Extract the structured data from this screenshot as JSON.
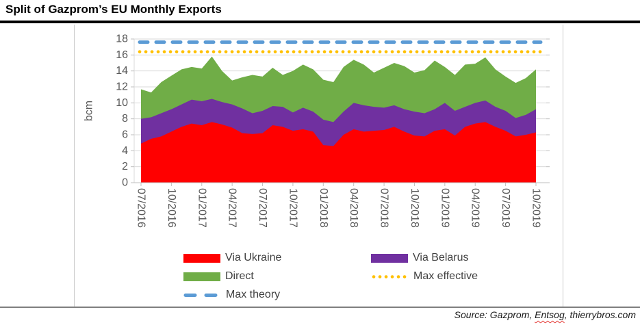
{
  "title": "Split of Gazprom’s EU Monthly Exports",
  "source": {
    "prefix": "Source: Gazprom, ",
    "spellchecked_word": "Entsog",
    "suffix": ", thierrybros.com"
  },
  "colors": {
    "via_ukraine": "#FF0000",
    "via_belarus": "#7030A0",
    "direct": "#70AD47",
    "max_effective": "#FFC000",
    "max_theory": "#5B9BD5",
    "gridline": "#D9D9D9",
    "axis": "#BFBFBF",
    "tick_text": "#595959",
    "legend_text": "#404040",
    "title_rule": "#000000",
    "bottom_rule": "#7F7F7F"
  },
  "chart_data": {
    "type": "area",
    "stacked": true,
    "title": "Split of Gazprom’s EU Monthly Exports",
    "xlabel": "",
    "ylabel": "bcm",
    "ylim": [
      0,
      18
    ],
    "ytick_step": 2,
    "ytick_labels": [
      "0",
      "2",
      "4",
      "6",
      "8",
      "10",
      "12",
      "14",
      "16",
      "18"
    ],
    "grid": true,
    "legend_position": "bottom",
    "xtick_every": 3,
    "xtick_labels": [
      "07/2016",
      "10/2016",
      "01/2017",
      "04/2017",
      "07/2017",
      "10/2017",
      "01/2018",
      "04/2018",
      "07/2018",
      "10/2018",
      "01/2019",
      "04/2019",
      "07/2019",
      "10/2019"
    ],
    "months": [
      "07/2016",
      "08/2016",
      "09/2016",
      "10/2016",
      "11/2016",
      "12/2016",
      "01/2017",
      "02/2017",
      "03/2017",
      "04/2017",
      "05/2017",
      "06/2017",
      "07/2017",
      "08/2017",
      "09/2017",
      "10/2017",
      "11/2017",
      "12/2017",
      "01/2018",
      "02/2018",
      "03/2018",
      "04/2018",
      "05/2018",
      "06/2018",
      "07/2018",
      "08/2018",
      "09/2018",
      "10/2018",
      "11/2018",
      "12/2018",
      "01/2019",
      "02/2019",
      "03/2019",
      "04/2019",
      "05/2019",
      "06/2019",
      "07/2019",
      "08/2019",
      "09/2019",
      "10/2019"
    ],
    "series": [
      {
        "name": "Via Ukraine",
        "color": "#FF0000",
        "values": [
          4.9,
          5.5,
          5.8,
          6.4,
          7.0,
          7.4,
          7.2,
          7.6,
          7.3,
          6.9,
          6.2,
          6.1,
          6.2,
          7.2,
          7.0,
          6.5,
          6.7,
          6.4,
          4.7,
          4.6,
          6.0,
          6.7,
          6.4,
          6.5,
          6.6,
          7.0,
          6.4,
          5.9,
          5.8,
          6.5,
          6.7,
          5.9,
          7.0,
          7.4,
          7.6,
          7.0,
          6.5,
          5.8,
          6.0,
          6.3
        ]
      },
      {
        "name": "Via Belarus",
        "color": "#7030A0",
        "values": [
          3.1,
          2.7,
          2.9,
          2.8,
          2.8,
          3.0,
          3.0,
          2.9,
          2.8,
          2.9,
          3.1,
          2.6,
          2.8,
          2.4,
          2.5,
          2.3,
          2.7,
          2.5,
          3.2,
          3.0,
          2.9,
          3.3,
          3.3,
          3.0,
          2.8,
          2.7,
          2.8,
          3.0,
          2.9,
          2.7,
          3.3,
          3.1,
          2.5,
          2.6,
          2.7,
          2.5,
          2.5,
          2.3,
          2.5,
          2.9
        ]
      },
      {
        "name": "Direct",
        "color": "#70AD47",
        "values": [
          3.7,
          3.1,
          3.9,
          4.2,
          4.4,
          4.1,
          4.1,
          5.3,
          3.9,
          3.0,
          3.9,
          4.8,
          4.3,
          4.8,
          4.0,
          5.2,
          5.4,
          5.3,
          5.0,
          5.0,
          5.6,
          5.4,
          5.1,
          4.3,
          5.0,
          5.3,
          5.4,
          4.9,
          5.4,
          6.1,
          4.5,
          4.5,
          5.3,
          4.9,
          5.4,
          4.7,
          4.3,
          4.4,
          4.6,
          5.0
        ]
      }
    ],
    "lines": [
      {
        "name": "Max effective",
        "color": "#FFC000",
        "style": "dotted",
        "value": 16.4
      },
      {
        "name": "Max theory",
        "color": "#5B9BD5",
        "style": "dashed",
        "value": 17.6
      }
    ]
  }
}
